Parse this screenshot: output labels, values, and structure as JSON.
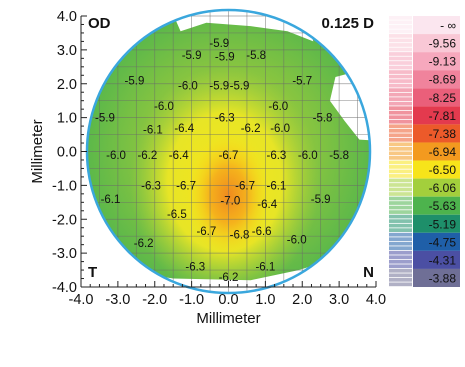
{
  "chart_data": {
    "type": "heatmap",
    "eye_label": "OD",
    "step_label": "0.125 D",
    "xlabel": "Millimeter",
    "ylabel": "Millimeter",
    "xlim": [
      -4.0,
      4.0
    ],
    "ylim": [
      -4.0,
      4.0
    ],
    "xticks": [
      "-4.0",
      "-3.0",
      "-2.0",
      "-1.0",
      "0.0",
      "1.0",
      "2.0",
      "3.0",
      "4.0"
    ],
    "yticks": [
      "4.0",
      "3.0",
      "2.0",
      "1.0",
      "0.0",
      "-1.0",
      "-2.0",
      "-3.0",
      "-4.0"
    ],
    "corner_labels": {
      "bottom_left": "T",
      "bottom_right": "N"
    },
    "grid": true,
    "grid_spacing_mm": 0.5,
    "legend": [
      {
        "label": "- ∞",
        "color": "#fbe6ef"
      },
      {
        "label": "-9.56",
        "color": "#f9c8d6"
      },
      {
        "label": "-9.13",
        "color": "#f6a8bd"
      },
      {
        "label": "-8.69",
        "color": "#f0839c"
      },
      {
        "label": "-8.25",
        "color": "#ea5f7a"
      },
      {
        "label": "-7.81",
        "color": "#e33a4e"
      },
      {
        "label": "-7.38",
        "color": "#ec5a2a"
      },
      {
        "label": "-6.94",
        "color": "#f39a1f"
      },
      {
        "label": "-6.50",
        "color": "#f7e41a"
      },
      {
        "label": "-6.06",
        "color": "#a3cf3c"
      },
      {
        "label": "-5.63",
        "color": "#4db34d"
      },
      {
        "label": "-5.19",
        "color": "#1e8f6a"
      },
      {
        "label": "-4.75",
        "color": "#1f5fa8"
      },
      {
        "label": "-4.31",
        "color": "#4b4fa3"
      },
      {
        "label": "-3.88",
        "color": "#6f6f96"
      }
    ],
    "values": [
      {
        "x": -0.25,
        "y": 3.2,
        "v": "-5.9"
      },
      {
        "x": -1.0,
        "y": 2.85,
        "v": "-5.9"
      },
      {
        "x": -0.1,
        "y": 2.8,
        "v": "-5.9"
      },
      {
        "x": 0.75,
        "y": 2.85,
        "v": "-5.8"
      },
      {
        "x": -2.55,
        "y": 2.1,
        "v": "-5.9"
      },
      {
        "x": -1.1,
        "y": 1.95,
        "v": "-6.0"
      },
      {
        "x": -0.25,
        "y": 1.95,
        "v": "-5.9"
      },
      {
        "x": 0.3,
        "y": 1.95,
        "v": "-5.9"
      },
      {
        "x": 2.0,
        "y": 2.1,
        "v": "-5.7"
      },
      {
        "x": -1.75,
        "y": 1.35,
        "v": "-6.0"
      },
      {
        "x": 1.35,
        "y": 1.35,
        "v": "-6.0"
      },
      {
        "x": -3.35,
        "y": 1.0,
        "v": "-5.9"
      },
      {
        "x": -0.1,
        "y": 1.0,
        "v": "-6.3"
      },
      {
        "x": 2.55,
        "y": 1.0,
        "v": "-5.8"
      },
      {
        "x": -2.05,
        "y": 0.65,
        "v": "-6.1"
      },
      {
        "x": -1.2,
        "y": 0.7,
        "v": "-6.4"
      },
      {
        "x": 0.6,
        "y": 0.7,
        "v": "-6.2"
      },
      {
        "x": 1.4,
        "y": 0.7,
        "v": "-6.0"
      },
      {
        "x": -3.05,
        "y": -0.1,
        "v": "-6.0"
      },
      {
        "x": -2.2,
        "y": -0.1,
        "v": "-6.2"
      },
      {
        "x": -1.35,
        "y": -0.1,
        "v": "-6.4"
      },
      {
        "x": 0.0,
        "y": -0.1,
        "v": "-6.7"
      },
      {
        "x": 1.3,
        "y": -0.1,
        "v": "-6.3"
      },
      {
        "x": 2.15,
        "y": -0.1,
        "v": "-6.0"
      },
      {
        "x": 3.0,
        "y": -0.1,
        "v": "-5.8"
      },
      {
        "x": -2.1,
        "y": -1.0,
        "v": "-6.3"
      },
      {
        "x": -1.15,
        "y": -1.0,
        "v": "-6.7"
      },
      {
        "x": 0.45,
        "y": -1.0,
        "v": "-6.7"
      },
      {
        "x": 1.3,
        "y": -1.0,
        "v": "-6.1"
      },
      {
        "x": -3.2,
        "y": -1.4,
        "v": "-6.1"
      },
      {
        "x": 0.05,
        "y": -1.45,
        "v": "-7.0"
      },
      {
        "x": 1.05,
        "y": -1.55,
        "v": "-6.4"
      },
      {
        "x": 2.5,
        "y": -1.4,
        "v": "-5.9"
      },
      {
        "x": -1.4,
        "y": -1.85,
        "v": "-6.5"
      },
      {
        "x": -0.6,
        "y": -2.35,
        "v": "-6.7"
      },
      {
        "x": 0.3,
        "y": -2.45,
        "v": "-6.8"
      },
      {
        "x": 0.9,
        "y": -2.35,
        "v": "-6.6"
      },
      {
        "x": -2.3,
        "y": -2.7,
        "v": "-6.2"
      },
      {
        "x": 1.85,
        "y": -2.6,
        "v": "-6.0"
      },
      {
        "x": -0.9,
        "y": -3.4,
        "v": "-6.3"
      },
      {
        "x": 1.0,
        "y": -3.4,
        "v": "-6.1"
      },
      {
        "x": 0.0,
        "y": -3.7,
        "v": "-6.2"
      }
    ]
  }
}
